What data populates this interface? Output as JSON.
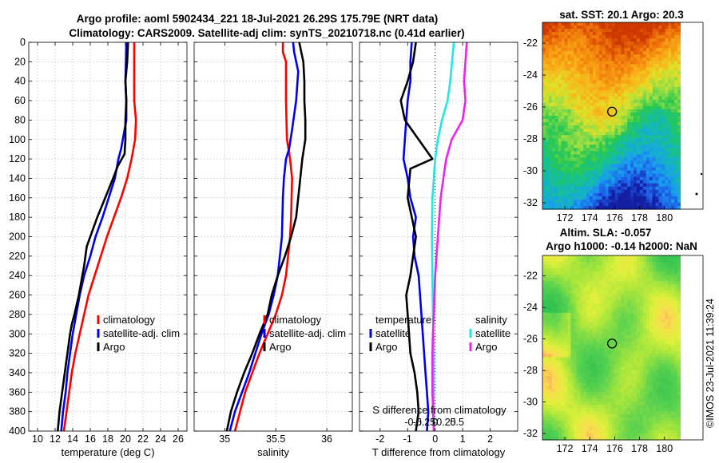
{
  "titles": {
    "main_line1": "Argo profile: aoml 5902434_221 18-Jul-2021 26.29S 175.79E (NRT data)",
    "main_line2": "Climatology: CARS2009. Satellite-adj clim: synTS_20210718.nc (0.41d earlier)",
    "sst": "sat. SST: 20.1 Argo: 20.3",
    "sla_line1": "Altim. SLA: -0.057",
    "sla_line2": "Argo h1000: -0.14 h2000: NaN",
    "credit": "©IMOS 23-Jul-2021 11:39:24"
  },
  "colors": {
    "climatology": "#ff0000",
    "satellite": "#0000ee",
    "argo": "#000000",
    "sal_satellite": "#22e6e6",
    "sal_argo": "#ee22ee"
  },
  "chart_data": [
    {
      "id": "temperature",
      "type": "line",
      "xlabel": "temperature (deg C)",
      "ylabel": "",
      "xlim": [
        9,
        27
      ],
      "ylim": [
        400,
        0
      ],
      "xticks": [
        10,
        12,
        14,
        16,
        18,
        20,
        22,
        24,
        26
      ],
      "yticks": [
        0,
        20,
        40,
        60,
        80,
        100,
        120,
        140,
        160,
        180,
        200,
        220,
        240,
        260,
        280,
        300,
        320,
        340,
        360,
        380,
        400
      ],
      "legend": [
        "climatology",
        "satellite-adj. clim",
        "Argo"
      ],
      "series": [
        {
          "name": "climatology",
          "color": "#ff0000",
          "points": [
            [
              21.0,
              0
            ],
            [
              21.0,
              40
            ],
            [
              21.0,
              60
            ],
            [
              21.1,
              70
            ],
            [
              21.2,
              80
            ],
            [
              21.1,
              100
            ],
            [
              20.7,
              120
            ],
            [
              20.2,
              140
            ],
            [
              19.5,
              160
            ],
            [
              18.7,
              180
            ],
            [
              17.9,
              200
            ],
            [
              17.2,
              220
            ],
            [
              16.5,
              240
            ],
            [
              15.8,
              260
            ],
            [
              15.3,
              280
            ],
            [
              14.8,
              300
            ],
            [
              14.3,
              320
            ],
            [
              13.9,
              340
            ],
            [
              13.6,
              360
            ],
            [
              13.3,
              380
            ],
            [
              13.0,
              400
            ]
          ]
        },
        {
          "name": "satellite-adj. clim",
          "color": "#0000ee",
          "points": [
            [
              20.1,
              0
            ],
            [
              20.0,
              40
            ],
            [
              20.1,
              60
            ],
            [
              20.1,
              80
            ],
            [
              19.9,
              90
            ],
            [
              19.7,
              100
            ],
            [
              19.5,
              110
            ],
            [
              19.2,
              120
            ],
            [
              18.8,
              140
            ],
            [
              18.1,
              160
            ],
            [
              17.4,
              180
            ],
            [
              16.6,
              200
            ],
            [
              16.0,
              220
            ],
            [
              15.3,
              240
            ],
            [
              14.8,
              260
            ],
            [
              14.4,
              280
            ],
            [
              14.0,
              300
            ],
            [
              13.7,
              320
            ],
            [
              13.4,
              340
            ],
            [
              13.2,
              360
            ],
            [
              12.9,
              380
            ],
            [
              12.7,
              400
            ]
          ]
        },
        {
          "name": "Argo",
          "color": "#000000",
          "points": [
            [
              20.3,
              0
            ],
            [
              20.2,
              20
            ],
            [
              20.0,
              40
            ],
            [
              20.1,
              60
            ],
            [
              20.0,
              80
            ],
            [
              20.0,
              100
            ],
            [
              19.9,
              115
            ],
            [
              19.4,
              123
            ],
            [
              19.1,
              128
            ],
            [
              18.6,
              140
            ],
            [
              17.7,
              160
            ],
            [
              16.8,
              180
            ],
            [
              16.0,
              200
            ],
            [
              15.6,
              210
            ],
            [
              15.3,
              230
            ],
            [
              14.9,
              250
            ],
            [
              14.7,
              260
            ],
            [
              14.2,
              280
            ],
            [
              13.9,
              290
            ],
            [
              13.7,
              300
            ],
            [
              13.4,
              320
            ],
            [
              13.1,
              340
            ],
            [
              12.8,
              360
            ],
            [
              12.5,
              380
            ],
            [
              12.3,
              400
            ]
          ]
        }
      ]
    },
    {
      "id": "salinity",
      "type": "line",
      "xlabel": "salinity",
      "ylabel": "",
      "xlim": [
        34.7,
        36.25
      ],
      "ylim": [
        400,
        0
      ],
      "xticks": [
        35,
        35.5,
        36
      ],
      "legend": [
        "climatology",
        "satellite-adj. clim",
        "Argo"
      ],
      "series": [
        {
          "name": "climatology",
          "color": "#ff0000",
          "points": [
            [
              35.57,
              0
            ],
            [
              35.57,
              10
            ],
            [
              35.6,
              20
            ],
            [
              35.6,
              60
            ],
            [
              35.61,
              100
            ],
            [
              35.64,
              120
            ],
            [
              35.66,
              140
            ],
            [
              35.65,
              180
            ],
            [
              35.64,
              200
            ],
            [
              35.6,
              240
            ],
            [
              35.56,
              260
            ],
            [
              35.5,
              280
            ],
            [
              35.42,
              300
            ],
            [
              35.34,
              320
            ],
            [
              35.27,
              340
            ],
            [
              35.2,
              360
            ],
            [
              35.15,
              380
            ],
            [
              35.1,
              400
            ]
          ]
        },
        {
          "name": "satellite-adj. clim",
          "color": "#0000ee",
          "points": [
            [
              35.67,
              0
            ],
            [
              35.68,
              10
            ],
            [
              35.72,
              30
            ],
            [
              35.7,
              60
            ],
            [
              35.66,
              90
            ],
            [
              35.63,
              110
            ],
            [
              35.6,
              120
            ],
            [
              35.58,
              140
            ],
            [
              35.57,
              160
            ],
            [
              35.56,
              200
            ],
            [
              35.54,
              220
            ],
            [
              35.52,
              240
            ],
            [
              35.48,
              260
            ],
            [
              35.43,
              280
            ],
            [
              35.36,
              300
            ],
            [
              35.3,
              320
            ],
            [
              35.24,
              340
            ],
            [
              35.17,
              360
            ],
            [
              35.1,
              380
            ],
            [
              35.05,
              400
            ]
          ]
        },
        {
          "name": "Argo",
          "color": "#000000",
          "points": [
            [
              35.73,
              0
            ],
            [
              35.75,
              10
            ],
            [
              35.77,
              20
            ],
            [
              35.78,
              40
            ],
            [
              35.78,
              60
            ],
            [
              35.79,
              80
            ],
            [
              35.79,
              100
            ],
            [
              35.76,
              120
            ],
            [
              35.74,
              140
            ],
            [
              35.72,
              160
            ],
            [
              35.7,
              180
            ],
            [
              35.65,
              200
            ],
            [
              35.59,
              220
            ],
            [
              35.52,
              240
            ],
            [
              35.46,
              260
            ],
            [
              35.42,
              280
            ],
            [
              35.34,
              300
            ],
            [
              35.27,
              320
            ],
            [
              35.19,
              340
            ],
            [
              35.12,
              360
            ],
            [
              35.06,
              380
            ],
            [
              35.02,
              400
            ]
          ]
        }
      ]
    },
    {
      "id": "difference",
      "type": "line",
      "xlabel": "T difference from climatology",
      "xlabel_top": "S difference from climatology",
      "xlim": [
        -2.75,
        3.0
      ],
      "ylim": [
        400,
        0
      ],
      "xticks": [
        -2,
        -1,
        0,
        1,
        2
      ],
      "xticks_top": [
        -0.5,
        -0.25,
        0,
        0.25,
        0.5
      ],
      "xticks_top_labels": [
        "-0.5",
        "-0.25",
        "0",
        "0.25",
        "0.5"
      ],
      "legend_temperature_title": "temperature",
      "legend_salinity_title": "salinity",
      "legend_temperature": [
        "satellite",
        "Argo"
      ],
      "legend_salinity": [
        "satellite",
        "Argo"
      ],
      "series": [
        {
          "name": "temperature satellite",
          "color": "#0000ee",
          "points": [
            [
              -0.85,
              0
            ],
            [
              -0.9,
              20
            ],
            [
              -0.9,
              40
            ],
            [
              -1.0,
              60
            ],
            [
              -1.05,
              80
            ],
            [
              -1.1,
              100
            ],
            [
              -1.15,
              120
            ],
            [
              -1.0,
              140
            ],
            [
              -0.9,
              160
            ],
            [
              -0.7,
              180
            ],
            [
              -0.8,
              200
            ],
            [
              -0.75,
              220
            ],
            [
              -0.6,
              240
            ],
            [
              -0.55,
              260
            ],
            [
              -0.5,
              280
            ],
            [
              -0.45,
              300
            ],
            [
              -0.4,
              320
            ],
            [
              -0.35,
              340
            ],
            [
              -0.3,
              360
            ],
            [
              -0.25,
              380
            ],
            [
              -0.3,
              400
            ]
          ]
        },
        {
          "name": "temperature Argo",
          "color": "#000000",
          "points": [
            [
              -0.7,
              0
            ],
            [
              -0.8,
              20
            ],
            [
              -1.0,
              40
            ],
            [
              -1.25,
              60
            ],
            [
              -1.1,
              80
            ],
            [
              -0.6,
              100
            ],
            [
              -0.1,
              120
            ],
            [
              -0.9,
              130
            ],
            [
              -1.0,
              160
            ],
            [
              -0.7,
              200
            ],
            [
              -0.8,
              220
            ],
            [
              -0.9,
              240
            ],
            [
              -1.05,
              260
            ],
            [
              -1.0,
              280
            ],
            [
              -0.95,
              300
            ],
            [
              -0.9,
              320
            ],
            [
              -0.75,
              340
            ],
            [
              -0.65,
              360
            ],
            [
              -0.6,
              380
            ],
            [
              -0.7,
              400
            ]
          ]
        },
        {
          "name": "salinity satellite",
          "color": "#22e6e6",
          "points": [
            [
              0.68,
              0
            ],
            [
              0.55,
              40
            ],
            [
              0.45,
              60
            ],
            [
              0.25,
              80
            ],
            [
              0.1,
              100
            ],
            [
              0.0,
              120
            ],
            [
              -0.05,
              140
            ],
            [
              -0.1,
              160
            ],
            [
              -0.12,
              200
            ],
            [
              -0.1,
              240
            ],
            [
              -0.08,
              280
            ],
            [
              -0.05,
              320
            ],
            [
              -0.05,
              360
            ],
            [
              -0.05,
              400
            ]
          ]
        },
        {
          "name": "salinity Argo",
          "color": "#ee22ee",
          "points": [
            [
              1.15,
              0
            ],
            [
              1.1,
              20
            ],
            [
              1.05,
              40
            ],
            [
              1.1,
              60
            ],
            [
              1.0,
              80
            ],
            [
              0.6,
              100
            ],
            [
              0.4,
              120
            ],
            [
              0.3,
              140
            ],
            [
              0.2,
              160
            ],
            [
              0.1,
              200
            ],
            [
              0.0,
              240
            ],
            [
              -0.05,
              280
            ],
            [
              -0.08,
              300
            ],
            [
              -0.1,
              320
            ],
            [
              -0.1,
              360
            ],
            [
              -0.05,
              400
            ]
          ]
        }
      ]
    },
    {
      "id": "sst_map",
      "type": "heatmap",
      "xticks": [
        172,
        174,
        176,
        178,
        180
      ],
      "yticks": [
        -22,
        -24,
        -26,
        -28,
        -30,
        -32
      ],
      "xlim": [
        170.2,
        181.3
      ],
      "ylim": [
        -32.4,
        -20.7
      ],
      "marker": {
        "lon": 175.79,
        "lat": -26.29
      }
    },
    {
      "id": "sla_map",
      "type": "heatmap",
      "xticks": [
        172,
        174,
        176,
        178,
        180
      ],
      "yticks": [
        -22,
        -24,
        -26,
        -28,
        -30,
        -32
      ],
      "xlim": [
        170.2,
        181.3
      ],
      "ylim": [
        -32.4,
        -20.7
      ],
      "marker": {
        "lon": 175.79,
        "lat": -26.29
      }
    }
  ]
}
